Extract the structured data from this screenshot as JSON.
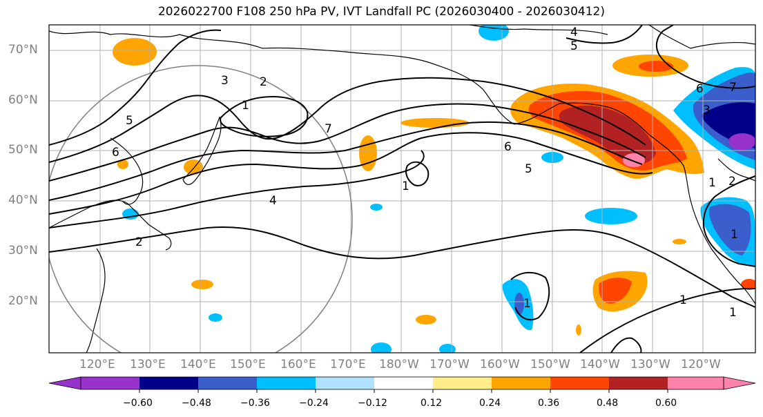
{
  "title": "2026022700 F108 250 hPa PV, IVT Landfall PC (2026030400 - 2026030412)",
  "lat_labels": [
    "70°N",
    "60°N",
    "50°N",
    "40°N",
    "30°N",
    "20°N"
  ],
  "lon_labels": [
    "120°E",
    "130°E",
    "140°E",
    "150°E",
    "160°E",
    "170°E",
    "180°W",
    "170°W",
    "160°W",
    "150°W",
    "140°W",
    "130°W",
    "120°W"
  ],
  "colorbar": {
    "colors": [
      "#9932cc",
      "#00008b",
      "#3a5fcd",
      "#00bfff",
      "#b0e2ff",
      "#ffffff",
      "#ffec8b",
      "#ffa500",
      "#ff4500",
      "#b22222",
      "#ff82ab"
    ],
    "ticks": [
      "−0.60",
      "−0.48",
      "−0.36",
      "−0.24",
      "−0.12",
      "0.12",
      "0.24",
      "0.36",
      "0.48",
      "0.60"
    ]
  },
  "contour_labels": [
    "4",
    "5",
    "3",
    "2",
    "1",
    "7",
    "5",
    "6",
    "6",
    "5",
    "1",
    "4",
    "2",
    "1",
    "1",
    "1",
    "1",
    "2",
    "6",
    "7",
    "3",
    "1"
  ]
}
